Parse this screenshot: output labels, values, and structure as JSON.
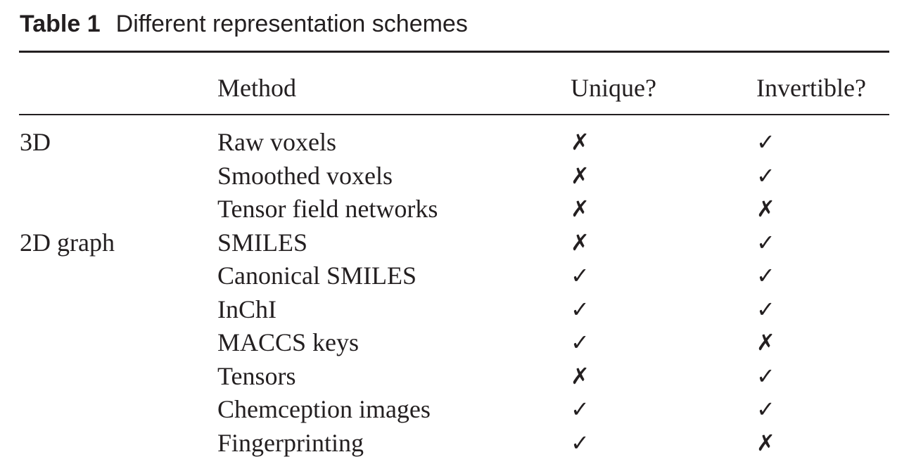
{
  "caption": {
    "label": "Table 1",
    "title": "Different representation schemes"
  },
  "table": {
    "columns": [
      "",
      "Method",
      "Unique?",
      "Invertible?"
    ],
    "symbols": {
      "yes": "✓",
      "no": "✗"
    },
    "rows": [
      {
        "group": "3D",
        "method": "Raw voxels",
        "unique": "✗",
        "invertible": "✓"
      },
      {
        "group": "",
        "method": "Smoothed voxels",
        "unique": "✗",
        "invertible": "✓"
      },
      {
        "group": "",
        "method": "Tensor field networks",
        "unique": "✗",
        "invertible": "✗"
      },
      {
        "group": "2D graph",
        "method": "SMILES",
        "unique": "✗",
        "invertible": "✓"
      },
      {
        "group": "",
        "method": "Canonical SMILES",
        "unique": "✓",
        "invertible": "✓"
      },
      {
        "group": "",
        "method": "InChI",
        "unique": "✓",
        "invertible": "✓"
      },
      {
        "group": "",
        "method": "MACCS keys",
        "unique": "✓",
        "invertible": "✗"
      },
      {
        "group": "",
        "method": "Tensors",
        "unique": "✗",
        "invertible": "✓"
      },
      {
        "group": "",
        "method": "Chemception images",
        "unique": "✓",
        "invertible": "✓"
      },
      {
        "group": "",
        "method": "Fingerprinting",
        "unique": "✓",
        "invertible": "✗"
      }
    ]
  }
}
